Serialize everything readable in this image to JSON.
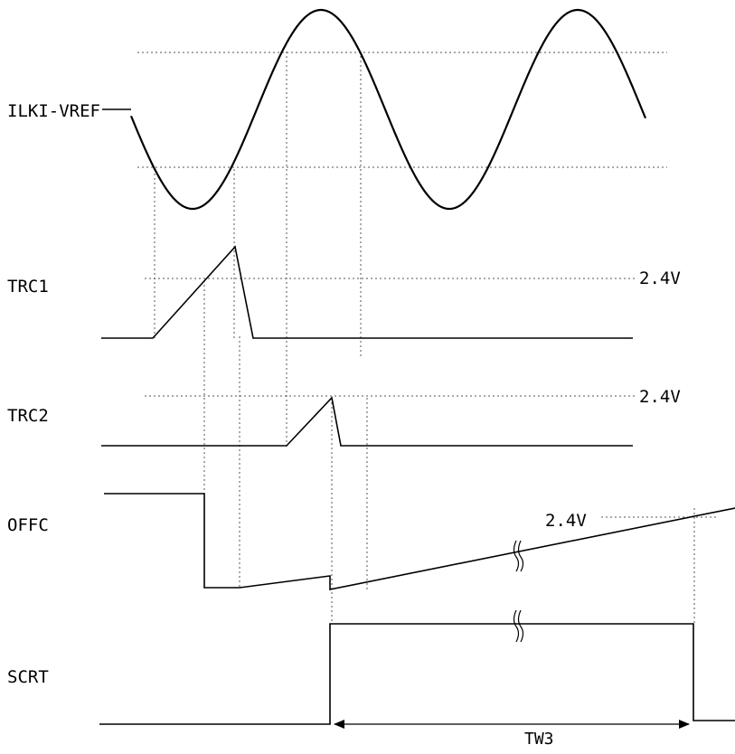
{
  "signals": {
    "ilki_vref": "ILKI-VREF",
    "trc1": "TRC1",
    "trc2": "TRC2",
    "offc": "OFFC",
    "scrt": "SCRT"
  },
  "annotations": {
    "trc1_threshold": "2.4V",
    "trc2_threshold": "2.4V",
    "offc_threshold": "2.4V",
    "interval": "TW3"
  },
  "colors": {
    "trace": "#000000",
    "guide": "#555555"
  }
}
